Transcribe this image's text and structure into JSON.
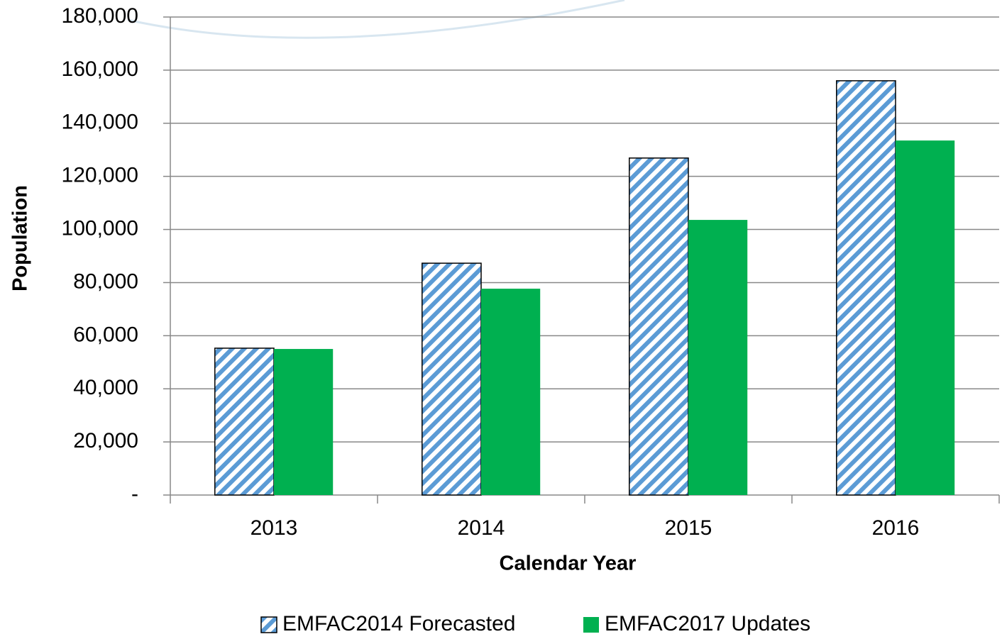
{
  "chart_data": {
    "type": "bar",
    "categories": [
      "2013",
      "2014",
      "2015",
      "2016"
    ],
    "series": [
      {
        "name": "EMFAC2014 Forecasted",
        "color": "#5b9bd5",
        "pattern": "hatch",
        "values": [
          55300,
          87300,
          126900,
          156000
        ]
      },
      {
        "name": "EMFAC2017 Updates",
        "color": "#00b050",
        "values": [
          55000,
          77700,
          103600,
          133500
        ]
      }
    ],
    "xlabel": "Calendar Year",
    "ylabel": "Population",
    "ylim": [
      0,
      180000
    ],
    "yticks": [
      {
        "value": 0,
        "label": "-"
      },
      {
        "value": 20000,
        "label": "20,000"
      },
      {
        "value": 40000,
        "label": "40,000"
      },
      {
        "value": 60000,
        "label": "60,000"
      },
      {
        "value": 80000,
        "label": "80,000"
      },
      {
        "value": 100000,
        "label": "100,000"
      },
      {
        "value": 120000,
        "label": "120,000"
      },
      {
        "value": 140000,
        "label": "140,000"
      },
      {
        "value": 160000,
        "label": "160,000"
      },
      {
        "value": 180000,
        "label": "180,000"
      }
    ],
    "grid": true,
    "legend": "bottom"
  }
}
